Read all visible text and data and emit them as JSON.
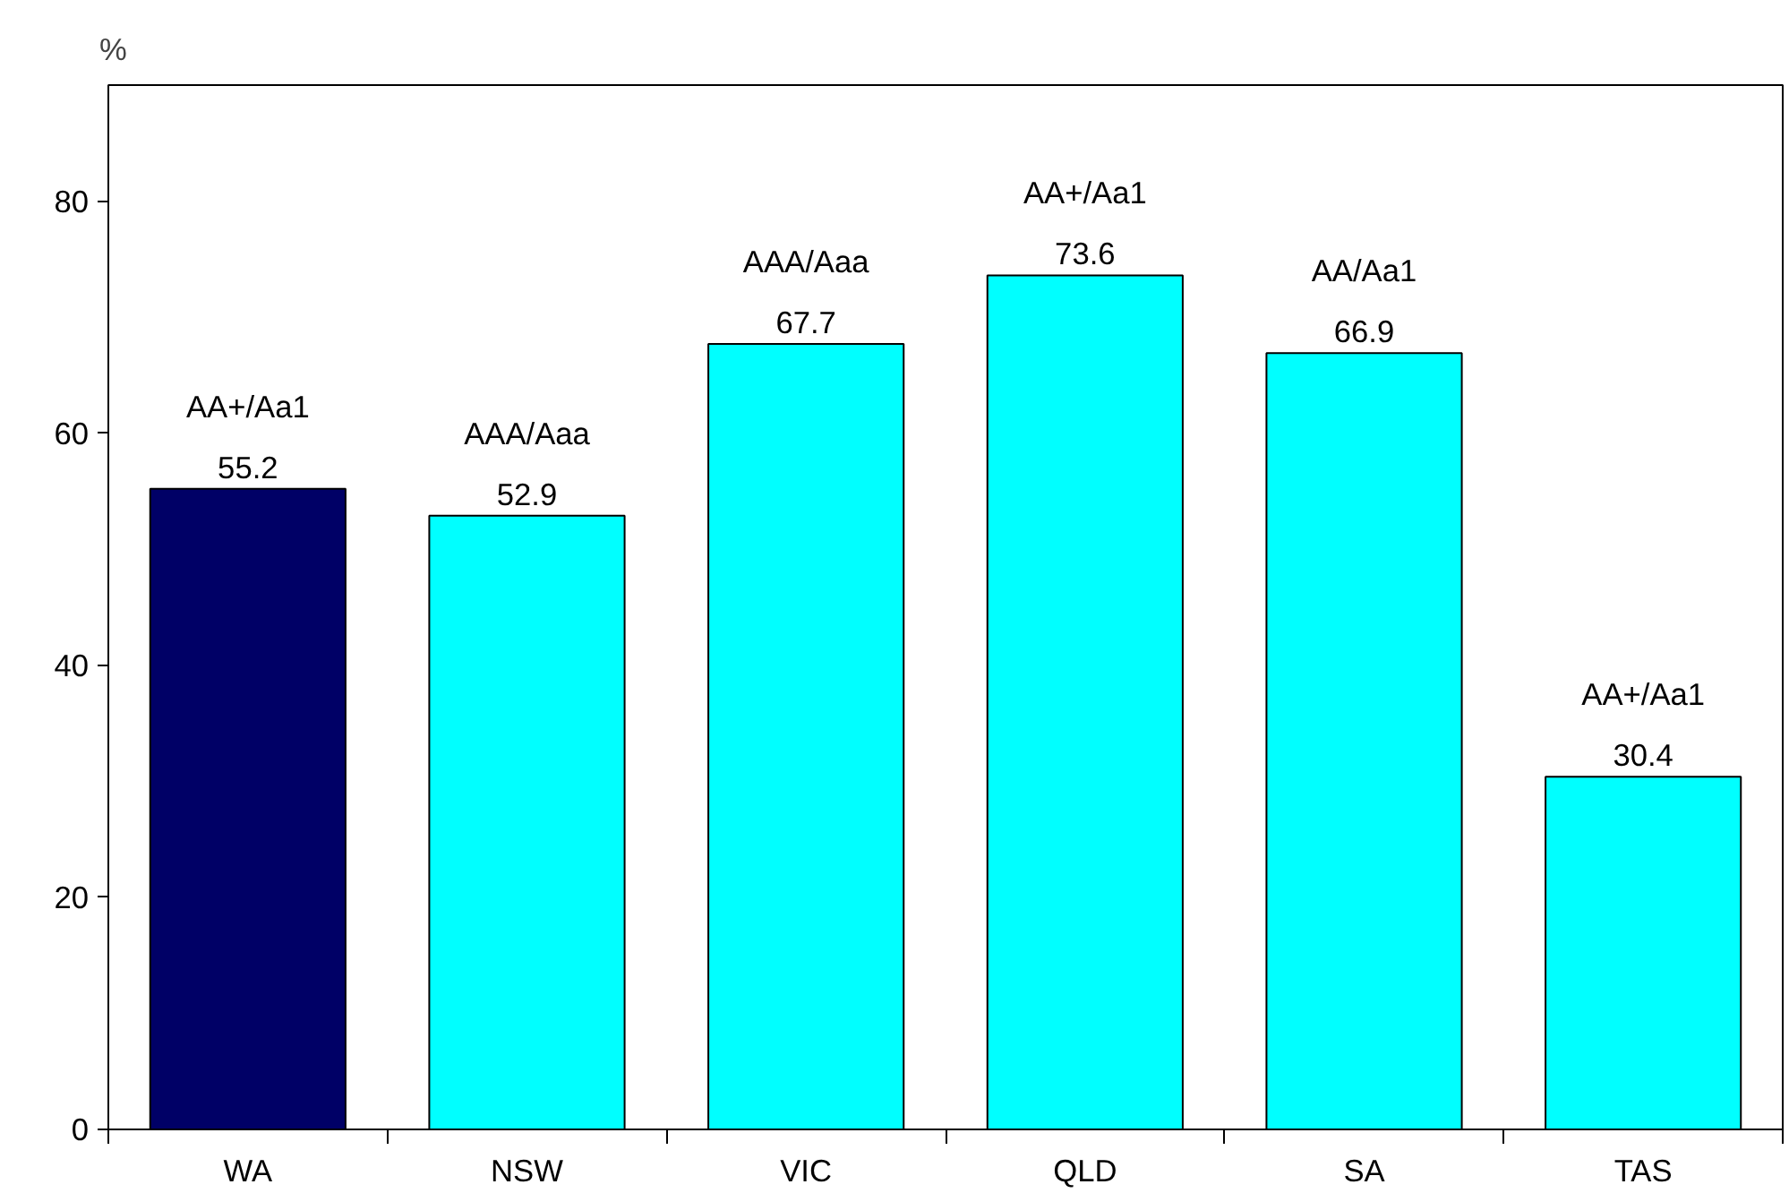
{
  "chart_data": {
    "type": "bar",
    "ylabel": "%",
    "categories": [
      "WA",
      "NSW",
      "VIC",
      "QLD",
      "SA",
      "TAS"
    ],
    "values": [
      55.2,
      52.9,
      67.7,
      73.6,
      66.9,
      30.4
    ],
    "colors": [
      "#000066",
      "#00ffff",
      "#00ffff",
      "#00ffff",
      "#00ffff",
      "#00ffff"
    ],
    "ylim": [
      0,
      90
    ],
    "yticks": [
      0,
      20,
      40,
      60,
      80
    ],
    "grid": false,
    "data_labels": true,
    "annotations": [
      {
        "text": "AA+/Aa1",
        "x": "WA",
        "y": 55.2
      },
      {
        "text": "AAA/Aaa",
        "x": "NSW",
        "y": 52.9
      },
      {
        "text": "AAA/Aaa",
        "x": "VIC",
        "y": 67.7
      },
      {
        "text": "AA+/Aa1",
        "x": "QLD",
        "y": 73.6
      },
      {
        "text": "AA/Aa1",
        "x": "SA",
        "y": 66.9
      },
      {
        "text": "AA+/Aa1",
        "x": "TAS",
        "y": 30.4
      }
    ]
  }
}
